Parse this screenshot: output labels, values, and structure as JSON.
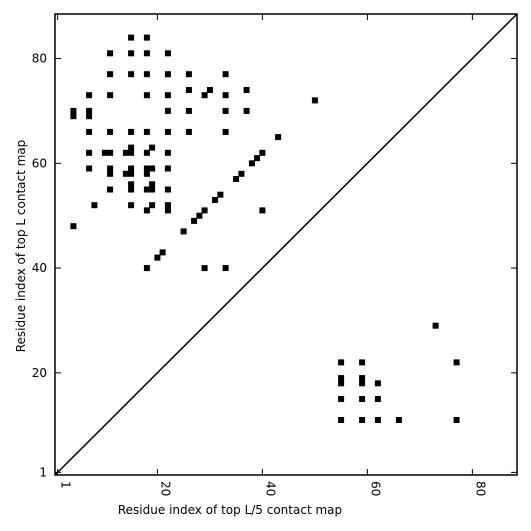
{
  "chart_data": {
    "type": "scatter",
    "title": "",
    "xlabel": "Residue index of top L/5 contact map",
    "ylabel": "Residue index of top L contact map",
    "xlim": [
      0.5,
      88.5
    ],
    "ylim": [
      0.5,
      88.5
    ],
    "x_ticks": [
      1,
      20,
      40,
      60,
      80
    ],
    "y_ticks": [
      1,
      20,
      40,
      60,
      80
    ],
    "x_tick_labels": [
      "1",
      "20",
      "40",
      "60",
      "80"
    ],
    "y_tick_labels": [
      "1",
      "20",
      "40",
      "60",
      "80"
    ],
    "grid": false,
    "marker": "square",
    "marker_color": "#000000",
    "diagonal_line": {
      "from": [
        0.5,
        0.5
      ],
      "to": [
        88.5,
        88.5
      ],
      "color": "#000000"
    },
    "series": [
      {
        "points_upper": [
          [
            4,
            48
          ],
          [
            4,
            69
          ],
          [
            4,
            70
          ],
          [
            7,
            59
          ],
          [
            7,
            62
          ],
          [
            7,
            66
          ],
          [
            7,
            69
          ],
          [
            7,
            70
          ],
          [
            7,
            73
          ],
          [
            8,
            52
          ],
          [
            10,
            62
          ],
          [
            11,
            55
          ],
          [
            11,
            58
          ],
          [
            11,
            59
          ],
          [
            11,
            62
          ],
          [
            11,
            66
          ],
          [
            11,
            73
          ],
          [
            11,
            77
          ],
          [
            11,
            81
          ],
          [
            14,
            58
          ],
          [
            14,
            62
          ],
          [
            15,
            52
          ],
          [
            15,
            55
          ],
          [
            15,
            56
          ],
          [
            15,
            58
          ],
          [
            15,
            59
          ],
          [
            15,
            62
          ],
          [
            15,
            63
          ],
          [
            15,
            66
          ],
          [
            15,
            77
          ],
          [
            15,
            81
          ],
          [
            15,
            84
          ],
          [
            18,
            40
          ],
          [
            18,
            51
          ],
          [
            18,
            55
          ],
          [
            18,
            58
          ],
          [
            18,
            59
          ],
          [
            18,
            62
          ],
          [
            18,
            66
          ],
          [
            18,
            73
          ],
          [
            18,
            77
          ],
          [
            18,
            81
          ],
          [
            18,
            84
          ],
          [
            19,
            52
          ],
          [
            19,
            55
          ],
          [
            19,
            56
          ],
          [
            19,
            59
          ],
          [
            19,
            63
          ],
          [
            20,
            42
          ],
          [
            21,
            43
          ],
          [
            22,
            51
          ],
          [
            22,
            52
          ],
          [
            22,
            55
          ],
          [
            22,
            59
          ],
          [
            22,
            62
          ],
          [
            22,
            66
          ],
          [
            22,
            70
          ],
          [
            22,
            73
          ],
          [
            22,
            77
          ],
          [
            22,
            81
          ],
          [
            25,
            47
          ],
          [
            26,
            66
          ],
          [
            26,
            70
          ],
          [
            26,
            74
          ],
          [
            26,
            77
          ],
          [
            27,
            49
          ],
          [
            28,
            50
          ],
          [
            29,
            40
          ],
          [
            29,
            51
          ],
          [
            29,
            73
          ],
          [
            30,
            74
          ],
          [
            31,
            53
          ],
          [
            32,
            54
          ],
          [
            33,
            40
          ],
          [
            33,
            66
          ],
          [
            33,
            70
          ],
          [
            33,
            73
          ],
          [
            33,
            77
          ],
          [
            35,
            57
          ],
          [
            36,
            58
          ],
          [
            37,
            70
          ],
          [
            37,
            74
          ],
          [
            38,
            60
          ],
          [
            39,
            61
          ],
          [
            40,
            51
          ],
          [
            40,
            62
          ],
          [
            43,
            65
          ],
          [
            50,
            72
          ]
        ],
        "points_lower": [
          [
            55,
            11
          ],
          [
            55,
            15
          ],
          [
            55,
            18
          ],
          [
            55,
            19
          ],
          [
            55,
            22
          ],
          [
            59,
            11
          ],
          [
            59,
            15
          ],
          [
            59,
            18
          ],
          [
            59,
            19
          ],
          [
            59,
            22
          ],
          [
            62,
            11
          ],
          [
            62,
            15
          ],
          [
            62,
            18
          ],
          [
            66,
            11
          ],
          [
            73,
            29
          ],
          [
            77,
            11
          ],
          [
            77,
            22
          ]
        ]
      }
    ]
  }
}
